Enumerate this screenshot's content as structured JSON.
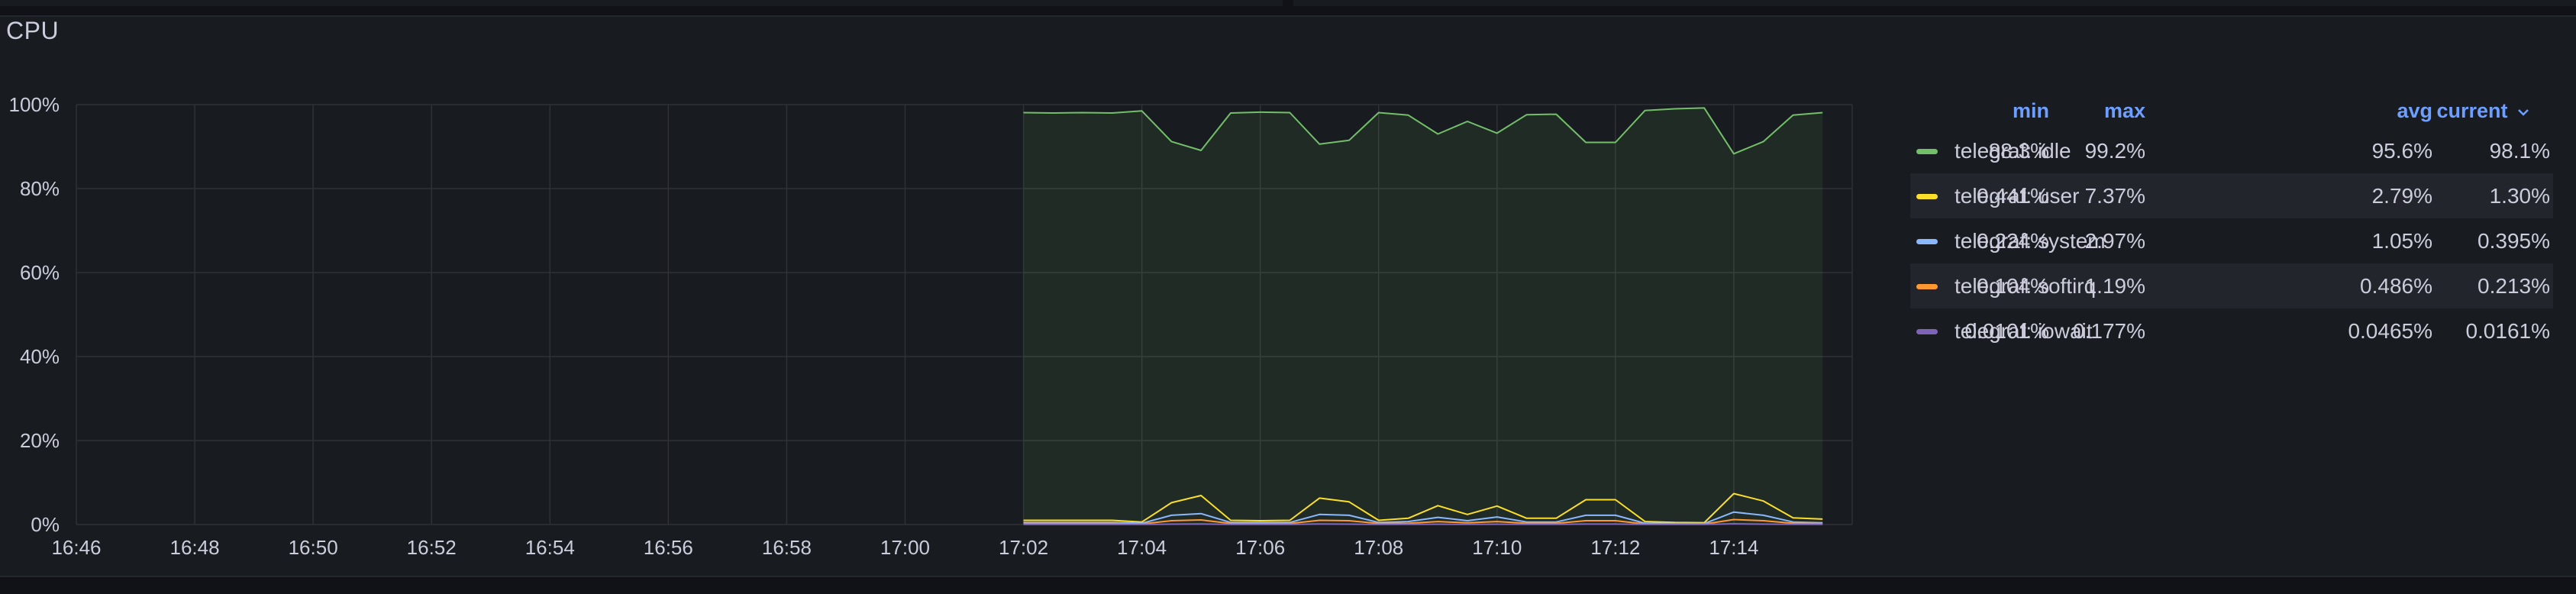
{
  "panel": {
    "title": "CPU"
  },
  "legend": {
    "headers": {
      "min": "min",
      "max": "max",
      "avg": "avg",
      "current": "current"
    },
    "chevron_icon": "chevron-down-icon",
    "rows": [
      {
        "name": "telegraf: idle",
        "color": "#73bf69",
        "min": "88.3%",
        "max": "99.2%",
        "avg": "95.6%",
        "current": "98.1%"
      },
      {
        "name": "telegraf: user",
        "color": "#fade2a",
        "min": "0.441%",
        "max": "7.37%",
        "avg": "2.79%",
        "current": "1.30%"
      },
      {
        "name": "telegraf: system",
        "color": "#8ab8ff",
        "min": "0.224%",
        "max": "2.97%",
        "avg": "1.05%",
        "current": "0.395%"
      },
      {
        "name": "telegraf: softirq",
        "color": "#ff9830",
        "min": "0.104%",
        "max": "1.19%",
        "avg": "0.486%",
        "current": "0.213%"
      },
      {
        "name": "telegraf: iowait",
        "color": "#7d64b8",
        "min": "0.0101%",
        "max": "0.177%",
        "avg": "0.0465%",
        "current": "0.0161%"
      }
    ]
  },
  "chart_data": {
    "type": "line",
    "title": "",
    "xlabel": "",
    "ylabel": "",
    "ylim": [
      0,
      100
    ],
    "xlim": [
      "16:46",
      "17:16"
    ],
    "grid": true,
    "legend_position": "right",
    "x_ticks": [
      "16:46",
      "16:48",
      "16:50",
      "16:52",
      "16:54",
      "16:56",
      "16:58",
      "17:00",
      "17:02",
      "17:04",
      "17:06",
      "17:08",
      "17:10",
      "17:12",
      "17:14"
    ],
    "y_ticks": [
      "0%",
      "20%",
      "40%",
      "60%",
      "80%",
      "100%"
    ],
    "y_tick_values": [
      0,
      20,
      40,
      60,
      80,
      100
    ],
    "x": [
      "17:02",
      "17:02:30",
      "17:03",
      "17:03:30",
      "17:04",
      "17:04:30",
      "17:05",
      "17:05:30",
      "17:06",
      "17:06:30",
      "17:07",
      "17:07:30",
      "17:08",
      "17:08:30",
      "17:09",
      "17:09:30",
      "17:10",
      "17:10:30",
      "17:11",
      "17:11:30",
      "17:12",
      "17:12:30",
      "17:13",
      "17:13:30",
      "17:14",
      "17:14:30",
      "17:15",
      "17:15:30"
    ],
    "series": [
      {
        "name": "telegraf: idle",
        "color": "#73bf69",
        "fill": true,
        "values": [
          98.1,
          98.0,
          98.1,
          98.0,
          98.5,
          91.2,
          89.1,
          98.0,
          98.2,
          98.1,
          90.6,
          91.5,
          98.1,
          97.5,
          93.0,
          96.0,
          93.2,
          97.6,
          97.7,
          91.0,
          91.0,
          98.6,
          99.0,
          99.2,
          88.3,
          91.2,
          97.5,
          98.1
        ]
      },
      {
        "name": "telegraf: user",
        "color": "#fade2a",
        "fill": false,
        "values": [
          1.0,
          1.0,
          1.0,
          1.0,
          0.6,
          5.2,
          6.9,
          1.0,
          0.9,
          1.0,
          6.3,
          5.4,
          1.0,
          1.5,
          4.5,
          2.4,
          4.4,
          1.5,
          1.5,
          5.9,
          5.9,
          0.7,
          0.5,
          0.44,
          7.37,
          5.6,
          1.6,
          1.3
        ]
      },
      {
        "name": "telegraf: system",
        "color": "#8ab8ff",
        "fill": false,
        "values": [
          0.5,
          0.5,
          0.5,
          0.5,
          0.3,
          2.2,
          2.6,
          0.5,
          0.5,
          0.5,
          2.4,
          2.2,
          0.5,
          0.7,
          1.7,
          0.9,
          1.8,
          0.6,
          0.6,
          2.2,
          2.2,
          0.3,
          0.25,
          0.224,
          2.97,
          2.2,
          0.6,
          0.395
        ]
      },
      {
        "name": "telegraf: softirq",
        "color": "#ff9830",
        "fill": false,
        "values": [
          0.25,
          0.25,
          0.25,
          0.25,
          0.15,
          0.9,
          1.1,
          0.25,
          0.2,
          0.25,
          1.0,
          0.9,
          0.25,
          0.3,
          0.7,
          0.4,
          0.7,
          0.3,
          0.3,
          0.9,
          0.9,
          0.15,
          0.12,
          0.104,
          1.19,
          0.9,
          0.3,
          0.213
        ]
      },
      {
        "name": "telegraf: iowait",
        "color": "#7d64b8",
        "fill": false,
        "values": [
          0.02,
          0.02,
          0.02,
          0.02,
          0.015,
          0.1,
          0.15,
          0.02,
          0.02,
          0.02,
          0.12,
          0.1,
          0.02,
          0.03,
          0.08,
          0.04,
          0.08,
          0.03,
          0.03,
          0.11,
          0.11,
          0.015,
          0.012,
          0.0101,
          0.177,
          0.1,
          0.03,
          0.0161
        ]
      }
    ]
  }
}
